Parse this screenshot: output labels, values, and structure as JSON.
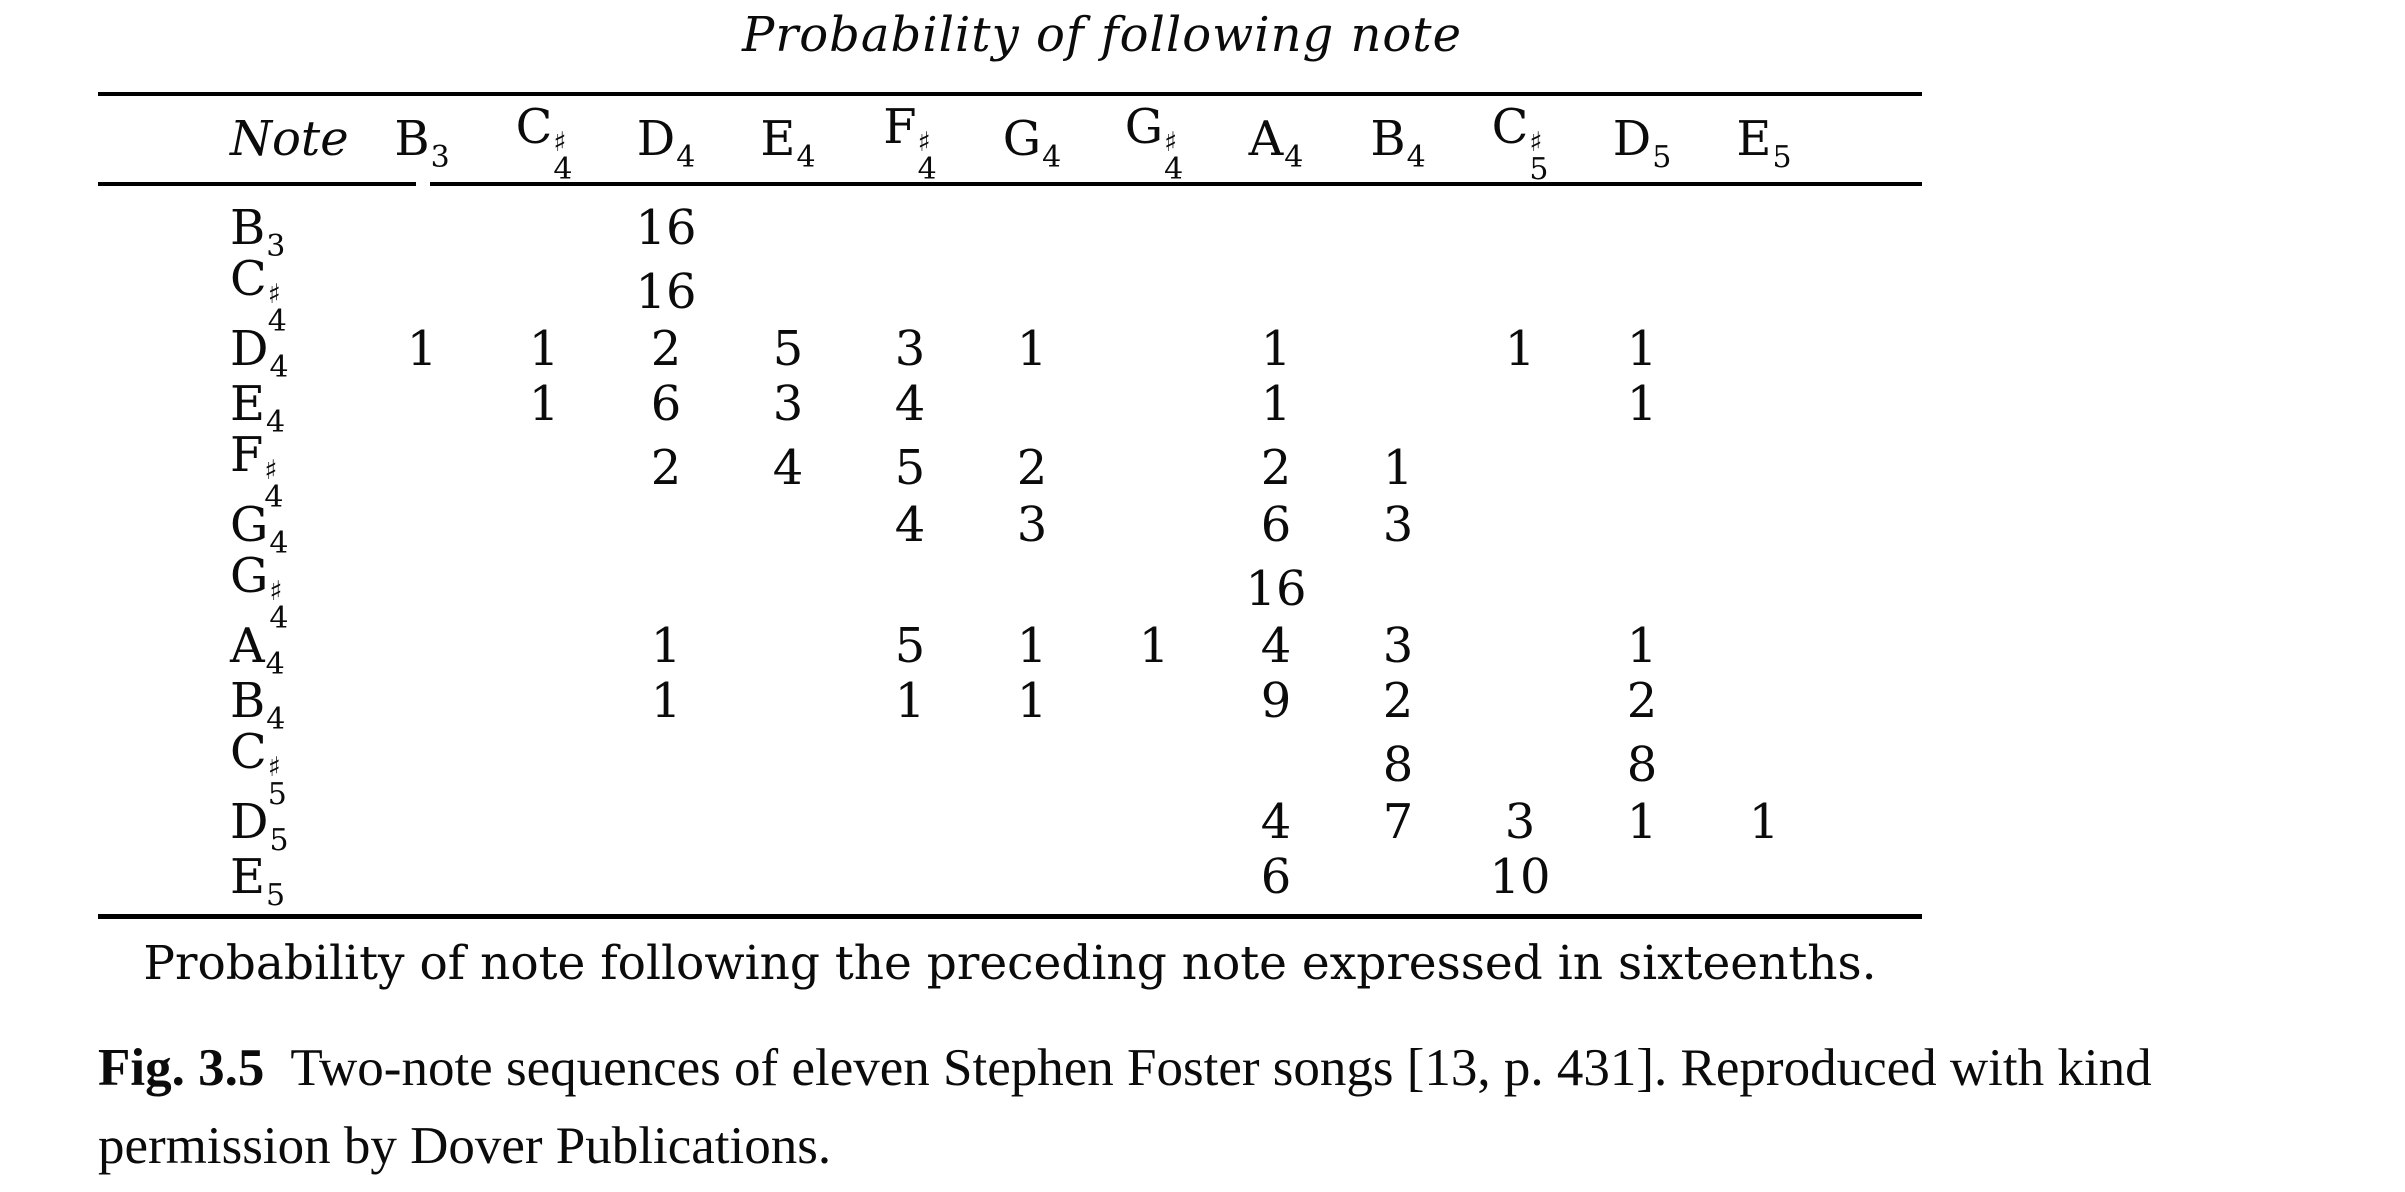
{
  "title": "Probability of following note",
  "table": {
    "note_col_header": "Note",
    "columns": [
      {
        "letter": "B",
        "accidental": "",
        "octave": "3"
      },
      {
        "letter": "C",
        "accidental": "♯",
        "octave": "4"
      },
      {
        "letter": "D",
        "accidental": "",
        "octave": "4"
      },
      {
        "letter": "E",
        "accidental": "",
        "octave": "4"
      },
      {
        "letter": "F",
        "accidental": "♯",
        "octave": "4"
      },
      {
        "letter": "G",
        "accidental": "",
        "octave": "4"
      },
      {
        "letter": "G",
        "accidental": "♯",
        "octave": "4"
      },
      {
        "letter": "A",
        "accidental": "",
        "octave": "4"
      },
      {
        "letter": "B",
        "accidental": "",
        "octave": "4"
      },
      {
        "letter": "C",
        "accidental": "♯",
        "octave": "5"
      },
      {
        "letter": "D",
        "accidental": "",
        "octave": "5"
      },
      {
        "letter": "E",
        "accidental": "",
        "octave": "5"
      }
    ],
    "rows": [
      {
        "note": {
          "letter": "B",
          "accidental": "",
          "octave": "3"
        },
        "values": [
          "",
          "",
          "16",
          "",
          "",
          "",
          "",
          "",
          "",
          "",
          "",
          ""
        ]
      },
      {
        "note": {
          "letter": "C",
          "accidental": "♯",
          "octave": "4"
        },
        "values": [
          "",
          "",
          "16",
          "",
          "",
          "",
          "",
          "",
          "",
          "",
          "",
          ""
        ]
      },
      {
        "note": {
          "letter": "D",
          "accidental": "",
          "octave": "4"
        },
        "values": [
          "1",
          "1",
          "2",
          "5",
          "3",
          "1",
          "",
          "1",
          "",
          "1",
          "1",
          ""
        ]
      },
      {
        "note": {
          "letter": "E",
          "accidental": "",
          "octave": "4"
        },
        "values": [
          "",
          "1",
          "6",
          "3",
          "4",
          "",
          "",
          "1",
          "",
          "",
          "1",
          ""
        ]
      },
      {
        "note": {
          "letter": "F",
          "accidental": "♯",
          "octave": "4"
        },
        "values": [
          "",
          "",
          "2",
          "4",
          "5",
          "2",
          "",
          "2",
          "1",
          "",
          "",
          ""
        ]
      },
      {
        "note": {
          "letter": "G",
          "accidental": "",
          "octave": "4"
        },
        "values": [
          "",
          "",
          "",
          "",
          "4",
          "3",
          "",
          "6",
          "3",
          "",
          "",
          ""
        ]
      },
      {
        "note": {
          "letter": "G",
          "accidental": "♯",
          "octave": "4"
        },
        "values": [
          "",
          "",
          "",
          "",
          "",
          "",
          "",
          "16",
          "",
          "",
          "",
          ""
        ]
      },
      {
        "note": {
          "letter": "A",
          "accidental": "",
          "octave": "4"
        },
        "values": [
          "",
          "",
          "1",
          "",
          "5",
          "1",
          "1",
          "4",
          "3",
          "",
          "1",
          ""
        ]
      },
      {
        "note": {
          "letter": "B",
          "accidental": "",
          "octave": "4"
        },
        "values": [
          "",
          "",
          "1",
          "",
          "1",
          "1",
          "",
          "9",
          "2",
          "",
          "2",
          ""
        ]
      },
      {
        "note": {
          "letter": "C",
          "accidental": "♯",
          "octave": "5"
        },
        "values": [
          "",
          "",
          "",
          "",
          "",
          "",
          "",
          "",
          "8",
          "",
          "8",
          ""
        ]
      },
      {
        "note": {
          "letter": "D",
          "accidental": "",
          "octave": "5"
        },
        "values": [
          "",
          "",
          "",
          "",
          "",
          "",
          "",
          "4",
          "7",
          "3",
          "1",
          "1"
        ]
      },
      {
        "note": {
          "letter": "E",
          "accidental": "",
          "octave": "5"
        },
        "values": [
          "",
          "",
          "",
          "",
          "",
          "",
          "",
          "6",
          "",
          "10",
          "",
          ""
        ]
      }
    ],
    "footnote": "Probability of note following the preceding note expressed in sixteenths."
  },
  "figure_caption": {
    "label": "Fig. 3.5",
    "text": "Two-note sequences of eleven Stephen Foster songs [13, p. 431]. Reproduced with kind permission by Dover Publications."
  },
  "colors": {
    "text": "#0b0b0b",
    "rule": "#000000",
    "background": "#ffffff"
  }
}
